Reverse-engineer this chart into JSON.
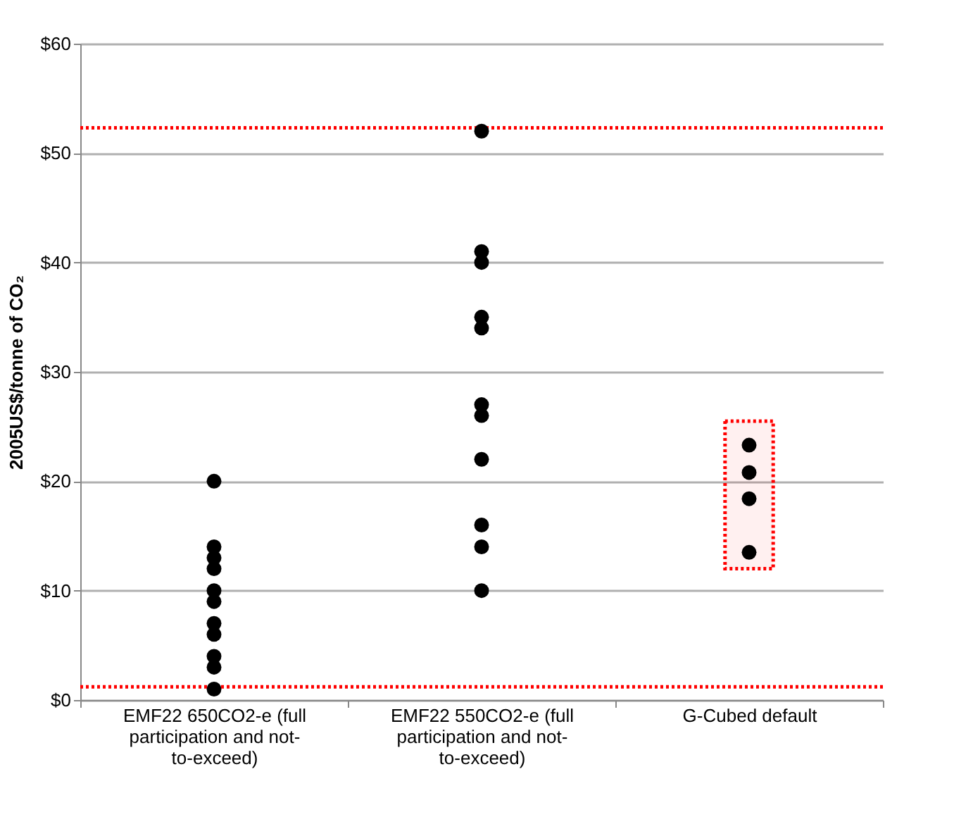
{
  "chart_data": {
    "type": "scatter",
    "ylabel": "2005US$/tonne of CO₂",
    "categories": [
      "EMF22 650CO2-e (full participation and not-to-exceed)",
      "EMF22 550CO2-e (full participation and not-to-exceed)",
      "G-Cubed default"
    ],
    "series": [
      {
        "color": "#000000",
        "x": [
          "EMF22 650CO2-e (full participation and not-to-exceed)",
          "EMF22 650CO2-e (full participation and not-to-exceed)",
          "EMF22 650CO2-e (full participation and not-to-exceed)",
          "EMF22 650CO2-e (full participation and not-to-exceed)",
          "EMF22 650CO2-e (full participation and not-to-exceed)",
          "EMF22 650CO2-e (full participation and not-to-exceed)",
          "EMF22 650CO2-e (full participation and not-to-exceed)",
          "EMF22 650CO2-e (full participation and not-to-exceed)",
          "EMF22 650CO2-e (full participation and not-to-exceed)",
          "EMF22 650CO2-e (full participation and not-to-exceed)",
          "EMF22 650CO2-e (full participation and not-to-exceed)",
          "EMF22 550CO2-e (full participation and not-to-exceed)",
          "EMF22 550CO2-e (full participation and not-to-exceed)",
          "EMF22 550CO2-e (full participation and not-to-exceed)",
          "EMF22 550CO2-e (full participation and not-to-exceed)",
          "EMF22 550CO2-e (full participation and not-to-exceed)",
          "EMF22 550CO2-e (full participation and not-to-exceed)",
          "EMF22 550CO2-e (full participation and not-to-exceed)",
          "EMF22 550CO2-e (full participation and not-to-exceed)",
          "EMF22 550CO2-e (full participation and not-to-exceed)",
          "EMF22 550CO2-e (full participation and not-to-exceed)",
          "EMF22 550CO2-e (full participation and not-to-exceed)",
          "G-Cubed default",
          "G-Cubed default",
          "G-Cubed default",
          "G-Cubed default"
        ],
        "values": [
          20,
          14,
          13,
          12,
          10,
          9,
          7,
          6,
          4,
          3,
          1,
          52,
          41,
          40,
          35,
          34,
          27,
          26,
          22,
          16,
          14,
          10,
          23.3,
          20.8,
          18.4,
          13.5
        ]
      }
    ],
    "ylim": [
      0,
      60
    ],
    "yticks": [
      {
        "value": 0,
        "label": "$0"
      },
      {
        "value": 10,
        "label": "$10"
      },
      {
        "value": 20,
        "label": "$20"
      },
      {
        "value": 30,
        "label": "$30"
      },
      {
        "value": 40,
        "label": "$40"
      },
      {
        "value": 50,
        "label": "$50"
      },
      {
        "value": 60,
        "label": "$60"
      }
    ],
    "ref_lines": [
      {
        "axis": "y",
        "value": 52.3,
        "color": "#ff0000",
        "line_style": "dotted"
      },
      {
        "axis": "y",
        "value": 1.2,
        "color": "#ff0000",
        "line_style": "dotted"
      }
    ],
    "bands": [
      {
        "axis": "y",
        "from": 12,
        "to": 25.5,
        "color": "#ff0000"
      }
    ],
    "grid": "y",
    "marker": "circle"
  }
}
